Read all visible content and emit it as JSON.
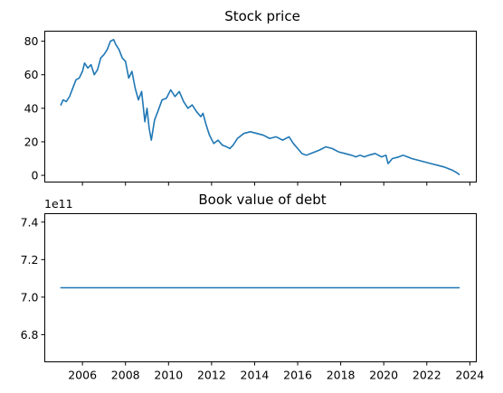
{
  "chart_data": [
    {
      "type": "line",
      "title": "Stock price",
      "xlabel": "",
      "ylabel": "",
      "xlim": [
        2004.25,
        2024.3
      ],
      "ylim": [
        -4,
        86
      ],
      "xticks": [
        2006,
        2008,
        2010,
        2012,
        2014,
        2016,
        2018,
        2020,
        2022,
        2024
      ],
      "show_xtick_labels": false,
      "yticks": [
        0,
        20,
        40,
        60,
        80
      ],
      "ytick_labels": [
        "0",
        "20",
        "40",
        "60",
        "80"
      ],
      "grid": false,
      "legend": "none",
      "series": [
        {
          "color": "#1f77b4",
          "x": [
            2005.0,
            2005.1,
            2005.25,
            2005.4,
            2005.55,
            2005.7,
            2005.85,
            2006.0,
            2006.1,
            2006.25,
            2006.4,
            2006.55,
            2006.7,
            2006.85,
            2007.0,
            2007.15,
            2007.3,
            2007.45,
            2007.55,
            2007.7,
            2007.85,
            2008.0,
            2008.15,
            2008.3,
            2008.45,
            2008.6,
            2008.75,
            2008.9,
            2009.0,
            2009.1,
            2009.2,
            2009.35,
            2009.5,
            2009.7,
            2009.9,
            2010.1,
            2010.3,
            2010.5,
            2010.7,
            2010.9,
            2011.1,
            2011.3,
            2011.5,
            2011.6,
            2011.75,
            2011.9,
            2012.1,
            2012.3,
            2012.5,
            2012.7,
            2012.85,
            2013.0,
            2013.2,
            2013.5,
            2013.8,
            2014.1,
            2014.4,
            2014.7,
            2015.0,
            2015.3,
            2015.6,
            2015.8,
            2016.0,
            2016.2,
            2016.4,
            2016.6,
            2016.8,
            2017.0,
            2017.3,
            2017.6,
            2017.9,
            2018.2,
            2018.5,
            2018.7,
            2018.9,
            2019.1,
            2019.3,
            2019.6,
            2019.9,
            2020.1,
            2020.2,
            2020.4,
            2020.7,
            2020.9,
            2021.1,
            2021.3,
            2021.6,
            2021.9,
            2022.2,
            2022.5,
            2022.8,
            2023.0,
            2023.2,
            2023.4,
            2023.5
          ],
          "y": [
            42,
            45,
            44,
            47,
            52,
            57,
            58,
            62,
            67,
            64,
            66,
            60,
            63,
            70,
            72,
            75,
            80,
            81,
            78,
            75,
            70,
            68,
            58,
            62,
            52,
            45,
            50,
            32,
            40,
            28,
            21,
            33,
            38,
            45,
            46,
            51,
            47,
            50,
            44,
            40,
            42,
            38,
            35,
            37,
            30,
            24,
            19,
            21,
            18,
            17,
            16,
            18,
            22,
            25,
            26,
            25,
            24,
            22,
            23,
            21,
            23,
            19,
            16,
            13,
            12,
            13,
            14,
            15,
            17,
            16,
            14,
            13,
            12,
            11,
            12,
            11,
            12,
            13,
            11,
            12,
            7,
            10,
            11,
            12,
            11,
            10,
            9,
            8,
            7,
            6,
            5,
            4,
            3,
            1.5,
            0.5
          ]
        }
      ]
    },
    {
      "type": "line",
      "title": "Book value of debt",
      "xlabel": "",
      "ylabel": "",
      "offset_text": "1e11",
      "xlim": [
        2004.25,
        2024.3
      ],
      "ylim": [
        6.655,
        7.445
      ],
      "xticks": [
        2006,
        2008,
        2010,
        2012,
        2014,
        2016,
        2018,
        2020,
        2022,
        2024
      ],
      "xtick_labels": [
        "2006",
        "2008",
        "2010",
        "2012",
        "2014",
        "2016",
        "2018",
        "2020",
        "2022",
        "2024"
      ],
      "yticks": [
        6.8,
        7.0,
        7.2,
        7.4
      ],
      "ytick_labels": [
        "6.8",
        "7.0",
        "7.2",
        "7.4"
      ],
      "grid": false,
      "legend": "none",
      "series": [
        {
          "color": "#1f77b4",
          "x": [
            2005.0,
            2023.5
          ],
          "y": [
            7.05,
            7.05
          ]
        }
      ]
    }
  ]
}
